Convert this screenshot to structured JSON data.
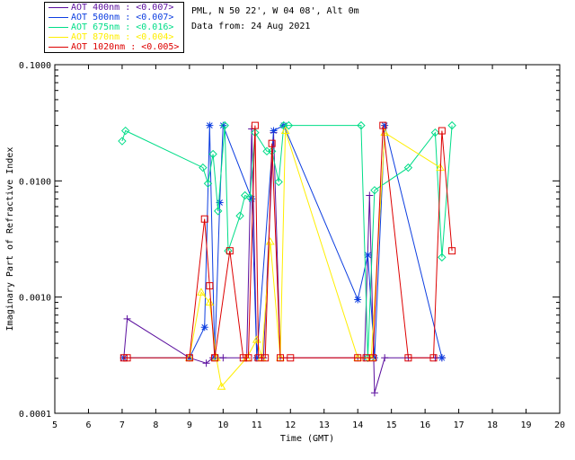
{
  "site": {
    "location": "PML, N 50 22', W 04 08', Alt 0m",
    "date_line": "Data from: 24 Aug 2021"
  },
  "legend": [
    {
      "label": "AOT  400nm : <0.007>",
      "color": "#5a0e9e"
    },
    {
      "label": "AOT  500nm : <0.007>",
      "color": "#0d3ee0"
    },
    {
      "label": "AOT  675nm : <0.016>",
      "color": "#00dd88"
    },
    {
      "label": "AOT  870nm : <0.004>",
      "color": "#ffee00"
    },
    {
      "label": "AOT 1020nm : <0.005>",
      "color": "#dd0000"
    }
  ],
  "chart_data": {
    "type": "line",
    "xlabel": "Time (GMT)",
    "ylabel": "Imaginary Part of Refractive Index",
    "xlim": [
      5,
      20
    ],
    "ylim": [
      0.0001,
      0.1
    ],
    "yscale": "log",
    "xticks": [
      "5",
      "6",
      "7",
      "8",
      "9",
      "10",
      "11",
      "12",
      "13",
      "14",
      "15",
      "16",
      "17",
      "18",
      "19",
      "20"
    ],
    "yticks": [
      "0.0001",
      "0.0010",
      "0.0100",
      "0.1000"
    ],
    "series": [
      {
        "name": "AOT  400nm : <0.007>",
        "color": "#5a0e9e",
        "marker": "+",
        "x": [
          7.05,
          7.15,
          9.0,
          9.5,
          9.7,
          9.85,
          10.0,
          10.7,
          10.85,
          11.0,
          11.2,
          11.5,
          11.7,
          14.0,
          14.2,
          14.35,
          14.5,
          14.8,
          15.5,
          16.3,
          16.5
        ],
        "y": [
          0.0003,
          0.00065,
          0.0003,
          0.00027,
          0.0003,
          0.0003,
          0.0003,
          0.0003,
          0.028,
          0.0003,
          0.0003,
          0.026,
          0.0003,
          0.0003,
          0.0003,
          0.0075,
          0.00015,
          0.0003,
          0.0003,
          0.0003,
          0.0003
        ]
      },
      {
        "name": "AOT  500nm : <0.007>",
        "color": "#0d3ee0",
        "marker": "*",
        "x": [
          7.05,
          9.0,
          9.45,
          9.6,
          9.75,
          9.9,
          10.0,
          10.85,
          11.0,
          11.5,
          11.8,
          14.0,
          14.3,
          14.5,
          14.8,
          16.5
        ],
        "y": [
          0.0003,
          0.0003,
          0.00055,
          0.03,
          0.0003,
          0.0065,
          0.03,
          0.007,
          0.0003,
          0.027,
          0.03,
          0.00095,
          0.0023,
          0.0003,
          0.03,
          0.0003
        ]
      },
      {
        "name": "AOT  675nm : <0.016>",
        "color": "#00dd88",
        "marker": "diamond",
        "x": [
          7.0,
          7.1,
          9.4,
          9.55,
          9.7,
          9.85,
          10.05,
          10.15,
          10.5,
          10.65,
          10.8,
          10.95,
          11.3,
          11.45,
          11.65,
          11.8,
          11.95,
          14.1,
          14.3,
          14.5,
          15.5,
          16.3,
          16.5,
          16.8
        ],
        "y": [
          0.022,
          0.027,
          0.013,
          0.0095,
          0.017,
          0.0055,
          0.03,
          0.0025,
          0.005,
          0.0075,
          0.0072,
          0.026,
          0.018,
          0.018,
          0.0098,
          0.03,
          0.03,
          0.03,
          0.0003,
          0.0083,
          0.013,
          0.026,
          0.0022,
          0.03
        ]
      },
      {
        "name": "AOT  870nm : <0.004>",
        "color": "#ffee00",
        "marker": "triangle",
        "x": [
          9.0,
          9.35,
          9.6,
          9.8,
          9.95,
          10.7,
          11.0,
          11.15,
          11.4,
          11.7,
          11.85,
          14.0,
          14.4,
          14.8,
          16.45
        ],
        "y": [
          0.0003,
          0.0011,
          0.0009,
          0.0003,
          0.00017,
          0.0003,
          0.00043,
          0.0003,
          0.003,
          0.0003,
          0.027,
          0.0003,
          0.0003,
          0.026,
          0.013
        ]
      },
      {
        "name": "AOT 1020nm : <0.005>",
        "color": "#dd0000",
        "marker": "square",
        "x": [
          7.05,
          7.15,
          9.0,
          9.45,
          9.6,
          9.75,
          10.2,
          10.6,
          10.75,
          10.95,
          11.05,
          11.25,
          11.45,
          11.7,
          12.0,
          14.0,
          14.25,
          14.45,
          14.75,
          15.5,
          16.25,
          16.5,
          16.8
        ],
        "y": [
          0.0003,
          0.0003,
          0.0003,
          0.0047,
          0.00125,
          0.0003,
          0.0025,
          0.0003,
          0.0003,
          0.03,
          0.0003,
          0.0003,
          0.021,
          0.0003,
          0.0003,
          0.0003,
          0.0003,
          0.0003,
          0.03,
          0.0003,
          0.0003,
          0.027,
          0.0025
        ]
      }
    ]
  }
}
